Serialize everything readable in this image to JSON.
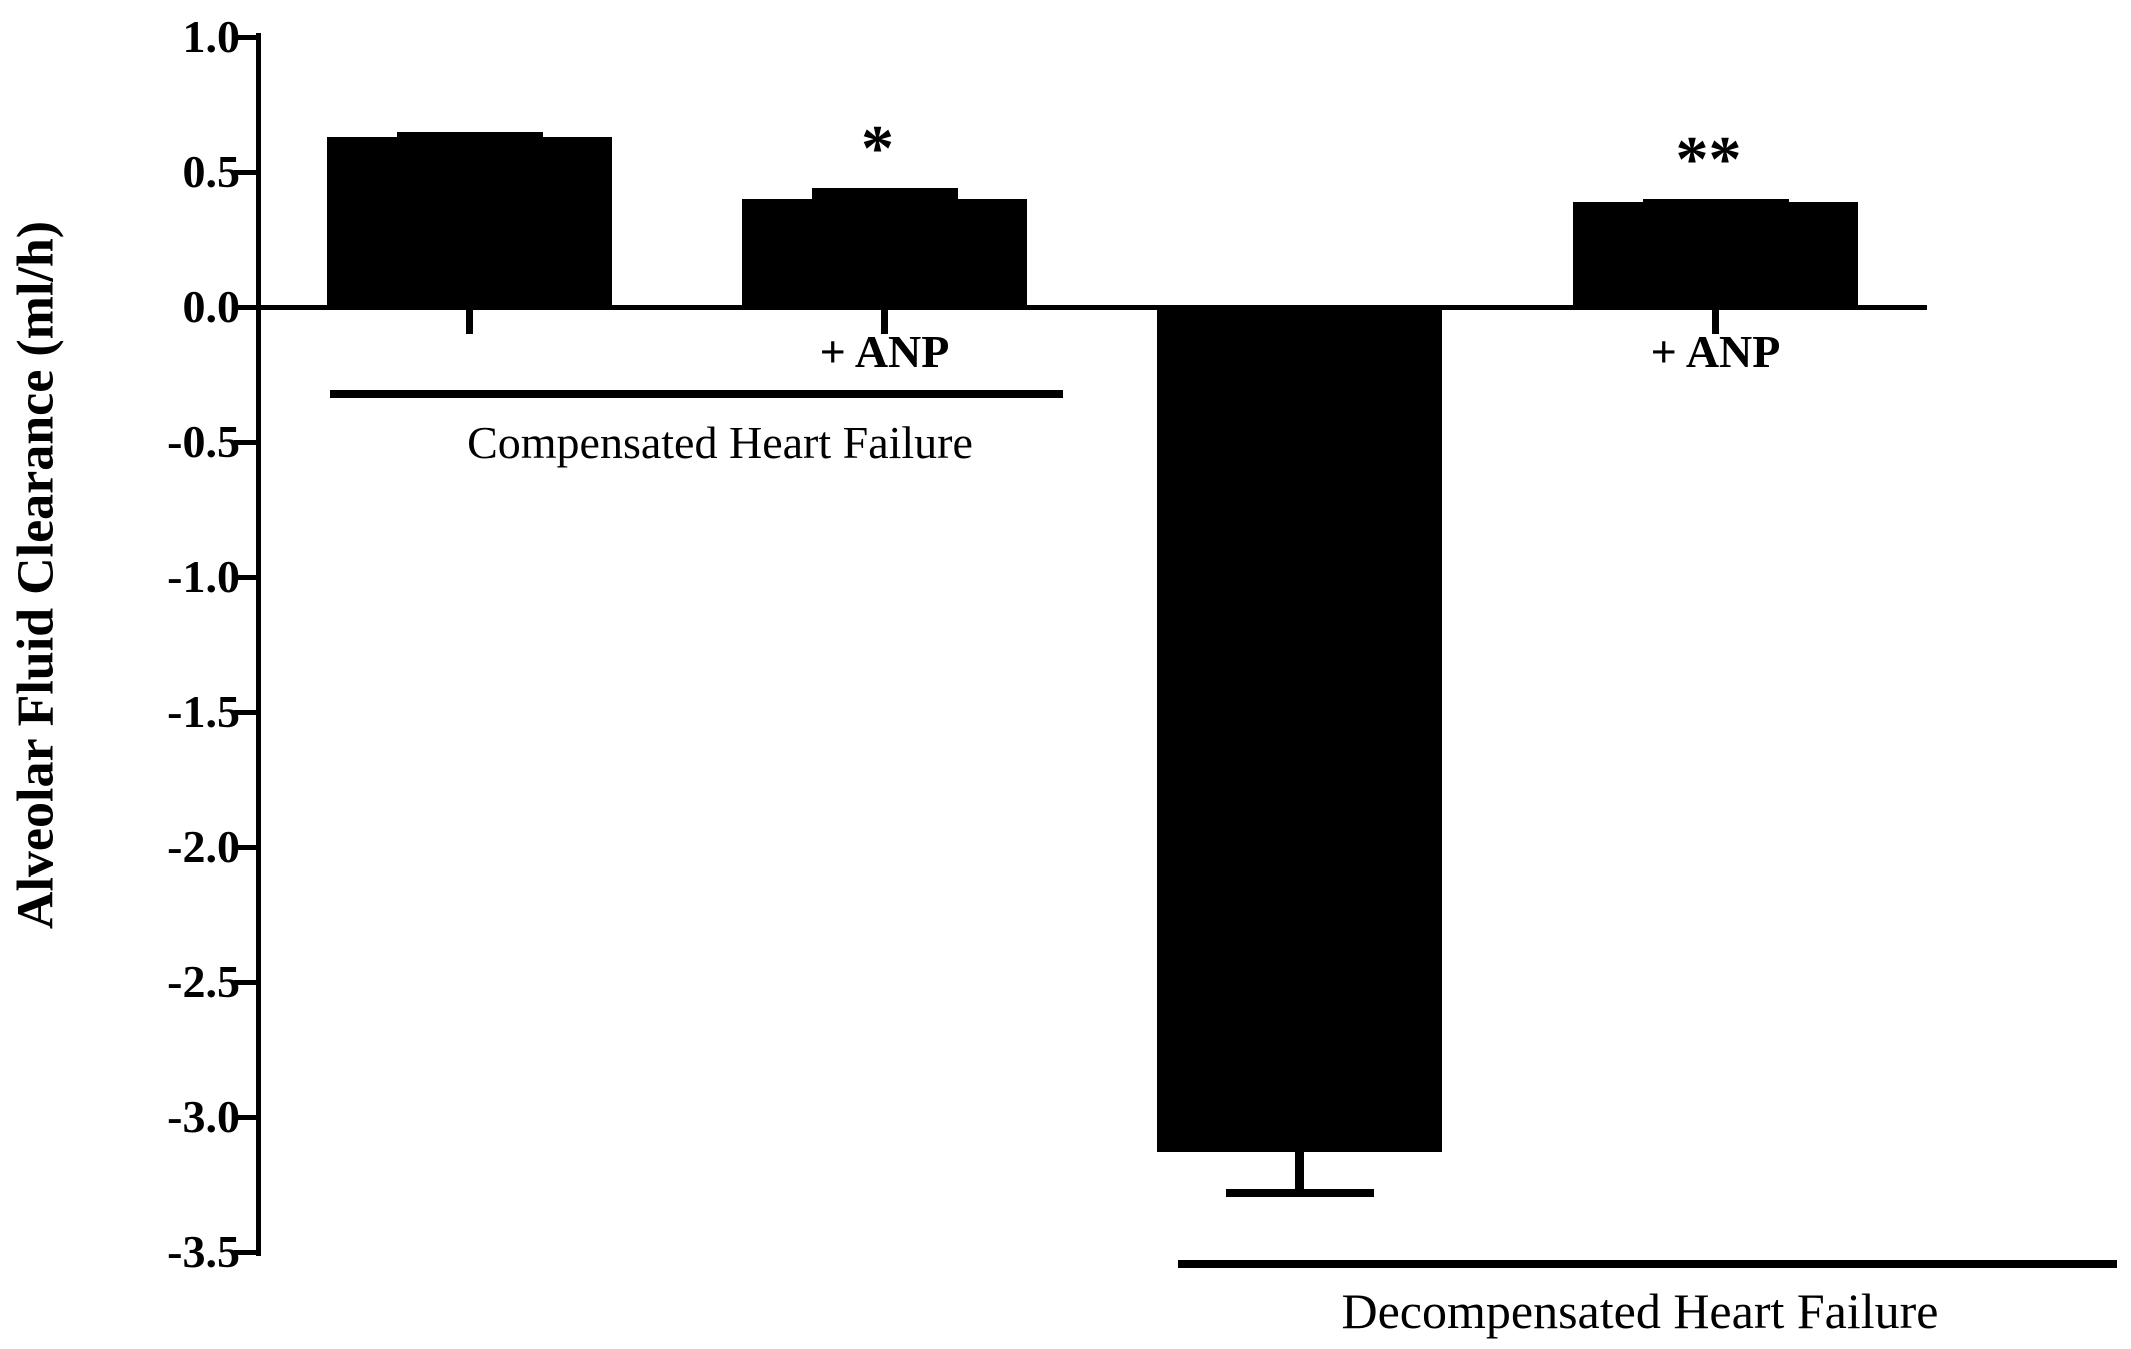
{
  "chart_data": {
    "type": "bar",
    "title": "",
    "ylabel": "Alveolar Fluid Clearance (ml/h)",
    "xlabel": "",
    "ylim": [
      -3.5,
      1.0
    ],
    "ytick_step": 0.5,
    "yticks": [
      "1.0",
      "0.5",
      "0.0",
      "-0.5",
      "-1.0",
      "-1.5",
      "-2.0",
      "-2.5",
      "-3.0",
      "-3.5"
    ],
    "grid": "off",
    "legend": "none",
    "bar_color": "#000000",
    "background_color": "#ffffff",
    "categories": [
      "Compensated Heart Failure",
      "Compensated Heart Failure + ANP",
      "Decompensated Heart Failure",
      "Decompensated Heart Failure + ANP"
    ],
    "values": [
      0.63,
      0.4,
      -3.13,
      0.39
    ],
    "sem": [
      0.02,
      0.04,
      0.15,
      0.01
    ],
    "groups": [
      {
        "label": "Compensated Heart Failure",
        "bars": [
          {
            "tick_label": "",
            "value": 0.63,
            "sem": 0.02,
            "significance": ""
          },
          {
            "tick_label": "+ ANP",
            "value": 0.4,
            "sem": 0.04,
            "significance": "*"
          }
        ]
      },
      {
        "label": "Decompensated Heart Failure",
        "bars": [
          {
            "tick_label": "",
            "value": -3.13,
            "sem": 0.15,
            "significance": ""
          },
          {
            "tick_label": "+ ANP",
            "value": 0.39,
            "sem": 0.01,
            "significance": "**"
          }
        ]
      }
    ]
  }
}
